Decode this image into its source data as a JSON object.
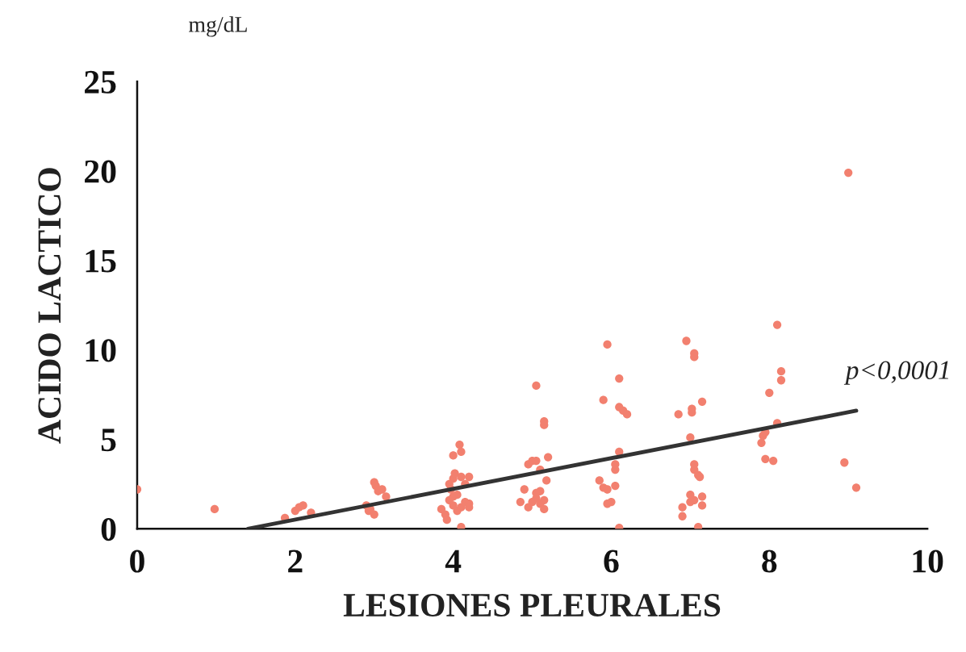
{
  "chart_data": {
    "type": "scatter",
    "xlabel": "LESIONES PLEURALES",
    "ylabel": "ACIDO LACTICO",
    "xlim": [
      0,
      10
    ],
    "ylim": [
      0,
      25
    ],
    "xticks": [
      0,
      2,
      4,
      6,
      8,
      10
    ],
    "yticks": [
      0,
      5,
      10,
      15,
      20,
      25
    ],
    "grid": false,
    "annotations": [
      "mg/dL",
      "p<0,0001"
    ],
    "series": [
      {
        "marker": "circle",
        "color": "#f2806f",
        "x": [
          0,
          0.98,
          1.87,
          2.0,
          2.05,
          2.1,
          2.2,
          2.9,
          2.93,
          2.95,
          3.0,
          3.0,
          3.02,
          3.05,
          3.1,
          3.15,
          3.85,
          3.9,
          3.92,
          3.95,
          3.97,
          4.0,
          4.02,
          4.0,
          4.08,
          4.1,
          4.1,
          4.15,
          3.95,
          4.0,
          4.05,
          4.1,
          4.15,
          4.2,
          4.05,
          4.0,
          4.1,
          4.2,
          4.2,
          4.85,
          4.9,
          4.95,
          5.0,
          5.05,
          5.1,
          5.0,
          5.05,
          5.1,
          5.15,
          5.15,
          5.1,
          5.18,
          5.2,
          5.05,
          5.15,
          5.15,
          5.05,
          4.95,
          5.85,
          5.9,
          5.95,
          5.9,
          5.95,
          6.0,
          6.05,
          6.05,
          6.05,
          6.1,
          6.1,
          6.15,
          6.2,
          6.1,
          6.1,
          5.95,
          6.85,
          6.9,
          6.9,
          6.95,
          7.0,
          7.0,
          7.05,
          7.05,
          7.02,
          7.02,
          7.0,
          7.05,
          7.05,
          7.1,
          7.12,
          7.15,
          7.15,
          7.1,
          7.15,
          7.05,
          7.9,
          7.92,
          7.95,
          7.95,
          8.0,
          8.05,
          8.1,
          8.15,
          8.15,
          8.1,
          9.0,
          8.95,
          9.1
        ],
        "values": [
          2.2,
          1.1,
          0.6,
          1.0,
          1.2,
          1.3,
          0.9,
          1.3,
          1.0,
          1.1,
          0.8,
          2.6,
          2.4,
          2.1,
          2.2,
          1.8,
          1.1,
          0.8,
          0.5,
          2.5,
          2.2,
          2.8,
          3.1,
          4.1,
          4.7,
          4.3,
          2.9,
          2.5,
          1.6,
          1.3,
          1.0,
          1.2,
          1.5,
          1.4,
          1.9,
          1.8,
          0.1,
          1.2,
          2.9,
          1.5,
          2.2,
          3.6,
          3.8,
          3.8,
          3.3,
          1.5,
          1.7,
          1.4,
          1.1,
          1.6,
          2.1,
          2.7,
          4.0,
          8.0,
          6.0,
          5.8,
          2.0,
          1.2,
          2.7,
          2.3,
          2.2,
          7.2,
          10.3,
          1.5,
          2.4,
          3.3,
          3.6,
          4.3,
          6.8,
          6.6,
          6.4,
          8.4,
          0.05,
          1.4,
          6.4,
          1.2,
          0.7,
          10.5,
          1.9,
          1.5,
          9.8,
          9.6,
          6.7,
          6.5,
          5.1,
          3.6,
          3.3,
          3.0,
          2.9,
          1.8,
          1.3,
          0.1,
          7.1,
          1.6,
          4.8,
          5.2,
          5.4,
          3.9,
          7.6,
          3.8,
          5.9,
          8.3,
          8.8,
          11.4,
          19.9,
          3.7,
          2.3
        ]
      },
      {
        "type": "line",
        "marker": "none",
        "color": "#333333",
        "x": [
          1.4,
          9.1
        ],
        "values": [
          0,
          6.6
        ]
      }
    ]
  }
}
